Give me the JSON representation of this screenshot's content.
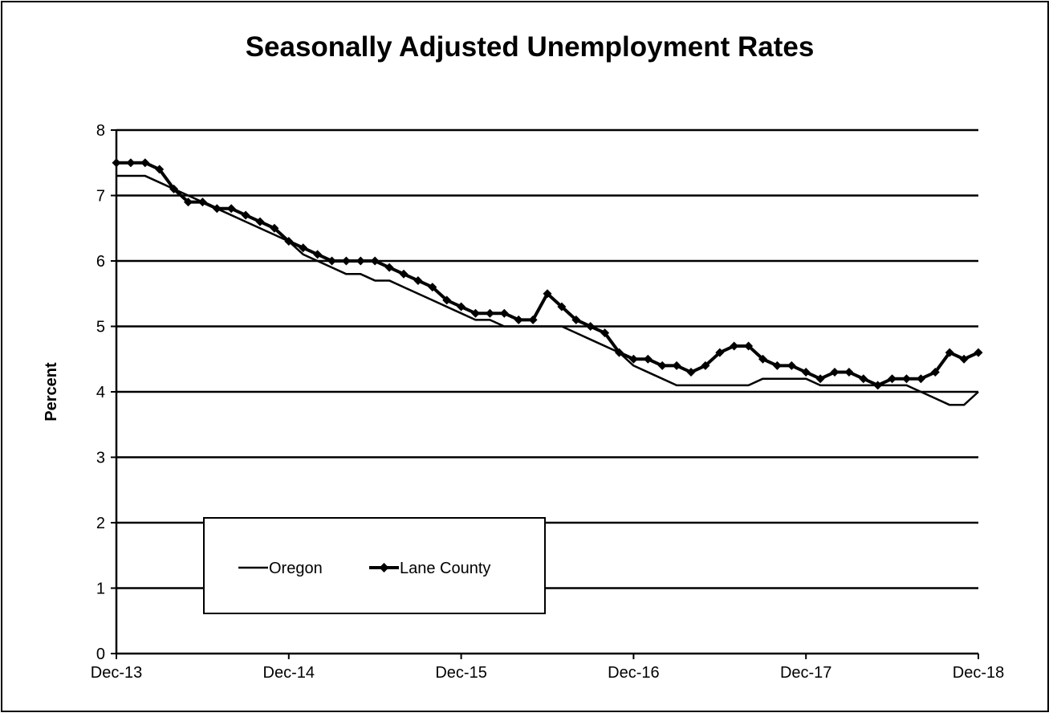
{
  "chart_data": {
    "type": "line",
    "title": "Seasonally Adjusted Unemployment Rates",
    "xlabel": "",
    "ylabel": "Percent",
    "ylim": [
      0,
      8
    ],
    "yticks": [
      "0",
      "1",
      "2",
      "3",
      "4",
      "5",
      "6",
      "7",
      "8"
    ],
    "xtick_labels": [
      "Dec-13",
      "Dec-14",
      "Dec-15",
      "Dec-16",
      "Dec-17",
      "Dec-18"
    ],
    "x_start": "Dec-13",
    "x_end": "Dec-18",
    "grid": "horizontal",
    "legend": "bottom-left",
    "series": [
      {
        "name": "Oregon",
        "marker": "none",
        "color": "#000000",
        "values": [
          7.3,
          7.3,
          7.3,
          7.2,
          7.1,
          7.0,
          6.9,
          6.8,
          6.7,
          6.6,
          6.5,
          6.4,
          6.3,
          6.1,
          6.0,
          5.9,
          5.8,
          5.8,
          5.7,
          5.7,
          5.6,
          5.5,
          5.4,
          5.3,
          5.2,
          5.1,
          5.1,
          5.0,
          5.0,
          5.0,
          5.0,
          5.0,
          4.9,
          4.8,
          4.7,
          4.6,
          4.4,
          4.3,
          4.2,
          4.1,
          4.1,
          4.1,
          4.1,
          4.1,
          4.1,
          4.2,
          4.2,
          4.2,
          4.2,
          4.1,
          4.1,
          4.1,
          4.1,
          4.1,
          4.1,
          4.1,
          4.0,
          3.9,
          3.8,
          3.8,
          4.0
        ]
      },
      {
        "name": "Lane County",
        "marker": "diamond",
        "color": "#000000",
        "values": [
          7.5,
          7.5,
          7.5,
          7.4,
          7.1,
          6.9,
          6.9,
          6.8,
          6.8,
          6.7,
          6.6,
          6.5,
          6.3,
          6.2,
          6.1,
          6.0,
          6.0,
          6.0,
          6.0,
          5.9,
          5.8,
          5.7,
          5.6,
          5.4,
          5.3,
          5.2,
          5.2,
          5.2,
          5.1,
          5.1,
          5.5,
          5.3,
          5.1,
          5.0,
          4.9,
          4.6,
          4.5,
          4.5,
          4.4,
          4.4,
          4.3,
          4.4,
          4.6,
          4.7,
          4.7,
          4.5,
          4.4,
          4.4,
          4.3,
          4.2,
          4.3,
          4.3,
          4.2,
          4.1,
          4.2,
          4.2,
          4.2,
          4.3,
          4.6,
          4.5,
          4.6
        ]
      }
    ]
  }
}
